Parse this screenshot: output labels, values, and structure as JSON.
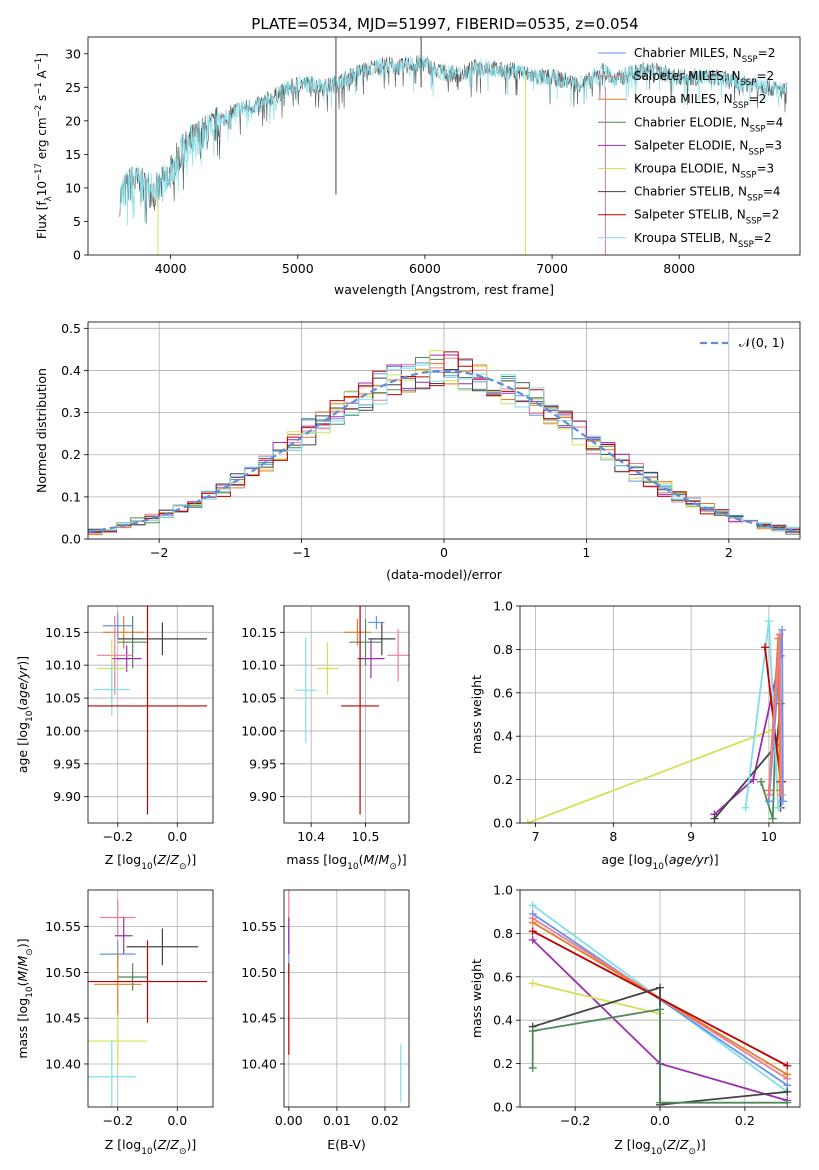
{
  "figure_title": "PLATE=0534, MJD=51997, FIBERID=0535, z=0.054",
  "colors": {
    "chabrier_miles": "#6495ed",
    "salpeter_miles": "#ef7c94",
    "kroupa_miles": "#e87b2a",
    "chabrier_elodie": "#4f8a58",
    "salpeter_elodie": "#9b2fae",
    "kroupa_elodie": "#d4e157",
    "chabrier_stelib": "#444444",
    "salpeter_stelib": "#c00000",
    "kroupa_stelib": "#80deea",
    "normal_curve": "#5b8fd8"
  },
  "chart_data": [
    {
      "id": "spectrum",
      "type": "line",
      "xlabel": "wavelength [Angstrom, rest frame]",
      "ylabel_main": "Flux [f",
      "ylabel_sub_lambda": "λ",
      "ylabel_rest": "10",
      "ylabel_exp1": "−17",
      "ylabel_mid": " erg cm",
      "ylabel_exp2": "−2",
      "ylabel_s": " s",
      "ylabel_exp3": "−1",
      "ylabel_end": " A",
      "ylabel_exp4": "−1",
      "ylabel_close": "]",
      "xlim": [
        3350,
        8950
      ],
      "ylim": [
        0,
        32.5
      ],
      "xticks": [
        4000,
        5000,
        6000,
        7000,
        8000
      ],
      "yticks": [
        0,
        5,
        10,
        15,
        20,
        25,
        30
      ],
      "legend": [
        {
          "name": "Chabrier MILES, N",
          "sub": "SSP",
          "rest": "=2",
          "color_key": "chabrier_miles"
        },
        {
          "name": "Salpeter MILES, N",
          "sub": "SSP",
          "rest": "=2",
          "color_key": "salpeter_miles"
        },
        {
          "name": "Kroupa MILES, N",
          "sub": "SSP",
          "rest": "=2",
          "color_key": "kroupa_miles"
        },
        {
          "name": "Chabrier ELODIE, N",
          "sub": "SSP",
          "rest": "=4",
          "color_key": "chabrier_elodie"
        },
        {
          "name": "Salpeter ELODIE, N",
          "sub": "SSP",
          "rest": "=3",
          "color_key": "salpeter_elodie"
        },
        {
          "name": "Kroupa ELODIE, N",
          "sub": "SSP",
          "rest": "=3",
          "color_key": "kroupa_elodie"
        },
        {
          "name": "Chabrier STELIB, N",
          "sub": "SSP",
          "rest": "=4",
          "color_key": "chabrier_stelib"
        },
        {
          "name": "Salpeter STELIB, N",
          "sub": "SSP",
          "rest": "=2",
          "color_key": "salpeter_stelib"
        },
        {
          "name": "Kroupa STELIB, N",
          "sub": "SSP",
          "rest": "=2",
          "color_key": "kroupa_stelib"
        }
      ],
      "spectrum_anchor_x": [
        3600,
        3700,
        3800,
        3900,
        4000,
        4100,
        4200,
        4300,
        4400,
        4500,
        4600,
        4700,
        4800,
        4900,
        5000,
        5100,
        5200,
        5300,
        5400,
        5500,
        5600,
        5700,
        5800,
        5900,
        6000,
        6100,
        6200,
        6300,
        6400,
        6500,
        6600,
        6700,
        6800,
        6900,
        7000,
        7100,
        7200,
        7300,
        7400,
        7500,
        7600,
        7700,
        7800,
        7900,
        8000,
        8100,
        8200,
        8300,
        8400,
        8500,
        8600,
        8700,
        8800
      ],
      "spectrum_anchor_y": [
        8.5,
        11.0,
        10.0,
        9.5,
        12.5,
        15.5,
        17.5,
        18.5,
        20.0,
        21.5,
        22.0,
        22.5,
        23.5,
        24.5,
        25.5,
        25.5,
        25.0,
        25.5,
        26.5,
        27.5,
        28.0,
        28.5,
        28.0,
        28.5,
        28.5,
        27.5,
        27.0,
        27.0,
        28.0,
        28.0,
        27.5,
        27.5,
        27.0,
        26.5,
        26.5,
        26.0,
        25.5,
        26.0,
        27.5,
        26.0,
        27.0,
        27.5,
        27.5,
        27.0,
        26.5,
        26.5,
        26.5,
        26.5,
        26.0,
        25.5,
        25.5,
        25.0,
        24.5
      ],
      "spectrum_x_start": 3600,
      "spectrum_x_end": 8850,
      "artifact_lines": [
        {
          "x": 3900,
          "y1": 0,
          "y2": 9,
          "color_key": "kroupa_elodie"
        },
        {
          "x": 5300,
          "y1": 9,
          "y2": 32.5,
          "color_key": "chabrier_stelib"
        },
        {
          "x": 5970,
          "y1": 25,
          "y2": 32.5,
          "color_key": "chabrier_stelib"
        },
        {
          "x": 6790,
          "y1": 0,
          "y2": 27,
          "color_key": "kroupa_elodie"
        },
        {
          "x": 7420,
          "y1": 0,
          "y2": 25,
          "color_key": "salpeter_miles"
        }
      ]
    },
    {
      "id": "residual_hist",
      "type": "line",
      "xlabel": "(data-model)/error",
      "ylabel": "Normed distribution",
      "xlim": [
        -2.5,
        2.5
      ],
      "ylim": [
        0,
        0.515
      ],
      "xticks": [
        -2,
        -1,
        0,
        1,
        2
      ],
      "xticklabels": [
        "−2",
        "−1",
        "0",
        "1",
        "2"
      ],
      "yticks": [
        0,
        0.1,
        0.2,
        0.3,
        0.4,
        0.5
      ],
      "yticklabels": [
        "0.0",
        "0.1",
        "0.2",
        "0.3",
        "0.4",
        "0.5"
      ],
      "legend_label": "𝒩(0, 1)",
      "bin_width": 0.1
    },
    {
      "id": "z_age",
      "type": "scatter",
      "xlabel": "Z [log10(Z/Z⊙)]",
      "ylabel": "age  [log10(age/yr)]",
      "xlim": [
        -0.3,
        0.12
      ],
      "ylim": [
        9.86,
        10.19
      ],
      "xticks": [
        -0.2,
        0.0
      ],
      "xticklabels": [
        "−0.2",
        "0.0"
      ],
      "yticks": [
        9.9,
        9.95,
        10.0,
        10.05,
        10.1,
        10.15
      ],
      "yticklabels": [
        "9.90",
        "9.95",
        "10.00",
        "10.05",
        "10.10",
        "10.15"
      ],
      "points": [
        {
          "color_key": "chabrier_miles",
          "x": -0.2,
          "xerr": 0.05,
          "y": 10.16,
          "yerr": 0.02
        },
        {
          "color_key": "kroupa_miles",
          "x": -0.18,
          "xerr": 0.07,
          "y": 10.15,
          "yerr": 0.025
        },
        {
          "color_key": "chabrier_elodie",
          "x": -0.15,
          "xerr": 0.05,
          "y": 10.135,
          "yerr": 0.04
        },
        {
          "color_key": "chabrier_stelib",
          "x": -0.05,
          "xerr": 0.15,
          "y": 10.14,
          "yerr": 0.025
        },
        {
          "color_key": "salpeter_elodie",
          "x": -0.17,
          "xerr": 0.05,
          "y": 10.11,
          "yerr": 0.02
        },
        {
          "color_key": "salpeter_miles",
          "x": -0.21,
          "xerr": 0.06,
          "y": 10.115,
          "yerr": 0.06
        },
        {
          "color_key": "kroupa_elodie",
          "x": -0.22,
          "xerr": 0.05,
          "y": 10.095,
          "yerr": 0.045
        },
        {
          "color_key": "kroupa_stelib",
          "x": -0.22,
          "xerr": 0.06,
          "y": 10.063,
          "yerr": 0.04
        },
        {
          "color_key": "salpeter_stelib",
          "x": -0.1,
          "xerr": 0.2,
          "y": 10.038,
          "yerr": 0.165
        }
      ]
    },
    {
      "id": "mass_age",
      "type": "scatter",
      "xlabel": "mass [log10(M/M⊙)]",
      "ylabel": "",
      "xlim": [
        10.35,
        10.58
      ],
      "ylim": [
        9.86,
        10.19
      ],
      "xticks": [
        10.4,
        10.5
      ],
      "xticklabels": [
        "10.4",
        "10.5"
      ],
      "yticks": [
        9.9,
        9.95,
        10.0,
        10.05,
        10.1,
        10.15
      ],
      "yticklabels": [
        "9.90",
        "9.95",
        "10.00",
        "10.05",
        "10.10",
        "10.15"
      ],
      "points": [
        {
          "color_key": "chabrier_miles",
          "x": 10.52,
          "xerr": 0.015,
          "y": 10.165,
          "yerr": 0.01
        },
        {
          "color_key": "kroupa_miles",
          "x": 10.485,
          "xerr": 0.025,
          "y": 10.15,
          "yerr": 0.02
        },
        {
          "color_key": "chabrier_stelib",
          "x": 10.53,
          "xerr": 0.025,
          "y": 10.14,
          "yerr": 0.025
        },
        {
          "color_key": "chabrier_elodie",
          "x": 10.5,
          "xerr": 0.03,
          "y": 10.135,
          "yerr": 0.035
        },
        {
          "color_key": "salpeter_miles",
          "x": 10.56,
          "xerr": 0.02,
          "y": 10.115,
          "yerr": 0.04
        },
        {
          "color_key": "salpeter_elodie",
          "x": 10.51,
          "xerr": 0.025,
          "y": 10.11,
          "yerr": 0.03
        },
        {
          "color_key": "kroupa_elodie",
          "x": 10.43,
          "xerr": 0.02,
          "y": 10.095,
          "yerr": 0.04
        },
        {
          "color_key": "kroupa_stelib",
          "x": 10.39,
          "xerr": 0.02,
          "y": 10.062,
          "yerr": 0.08
        },
        {
          "color_key": "salpeter_stelib",
          "x": 10.49,
          "xerr": 0.035,
          "y": 10.038,
          "yerr": 0.165
        }
      ]
    },
    {
      "id": "age_weight",
      "type": "line",
      "xlabel": "age  [log10(age/yr)]",
      "ylabel": "mass weight",
      "xlim": [
        6.8,
        10.4
      ],
      "ylim": [
        0,
        1.0
      ],
      "xticks": [
        7,
        8,
        9,
        10
      ],
      "yticks": [
        0,
        0.2,
        0.4,
        0.6,
        0.8,
        1.0
      ],
      "yticklabels": [
        "0.0",
        "0.2",
        "0.4",
        "0.6",
        "0.8",
        "1.0"
      ],
      "series": [
        {
          "color_key": "kroupa_elodie",
          "x": [
            6.9,
            10.05,
            10.1
          ],
          "y": [
            0.0,
            0.43,
            0.57
          ]
        },
        {
          "color_key": "salpeter_elodie",
          "x": [
            9.3,
            9.8,
            10.15
          ],
          "y": [
            0.04,
            0.2,
            0.77
          ]
        },
        {
          "color_key": "chabrier_stelib",
          "x": [
            9.3,
            10.1,
            10.15,
            10.15
          ],
          "y": [
            0.02,
            0.36,
            0.55,
            0.07
          ]
        },
        {
          "color_key": "chabrier_elodie",
          "x": [
            9.9,
            10.05,
            10.08
          ],
          "y": [
            0.19,
            0.02,
            0.35
          ]
        },
        {
          "color_key": "kroupa_stelib",
          "x": [
            9.7,
            10.0,
            10.12
          ],
          "y": [
            0.07,
            0.93,
            0.07
          ]
        },
        {
          "color_key": "salpeter_stelib",
          "x": [
            9.95,
            10.15,
            10.17
          ],
          "y": [
            0.81,
            0.19,
            0.19
          ]
        },
        {
          "color_key": "chabrier_miles",
          "x": [
            10.0,
            10.17,
            10.18
          ],
          "y": [
            0.1,
            0.89,
            0.1
          ]
        },
        {
          "color_key": "kroupa_miles",
          "x": [
            10.0,
            10.12,
            10.14
          ],
          "y": [
            0.15,
            0.85,
            0.15
          ]
        },
        {
          "color_key": "salpeter_miles",
          "x": [
            10.0,
            10.14,
            10.16
          ],
          "y": [
            0.13,
            0.87,
            0.13
          ]
        }
      ]
    },
    {
      "id": "z_mass",
      "type": "scatter",
      "xlabel": "Z [log10(Z/Z⊙)]",
      "ylabel": "mass [log10(M/M⊙)]",
      "xlim": [
        -0.3,
        0.12
      ],
      "ylim": [
        10.353,
        10.59
      ],
      "xticks": [
        -0.2,
        0.0
      ],
      "xticklabels": [
        "−0.2",
        "0.0"
      ],
      "yticks": [
        10.4,
        10.45,
        10.5,
        10.55
      ],
      "yticklabels": [
        "10.40",
        "10.45",
        "10.50",
        "10.55"
      ],
      "points": [
        {
          "color_key": "salpeter_miles",
          "x": -0.2,
          "xerr": 0.06,
          "y": 10.56,
          "yerr": 0.02
        },
        {
          "color_key": "salpeter_elodie",
          "x": -0.18,
          "xerr": 0.03,
          "y": 10.54,
          "yerr": 0.02
        },
        {
          "color_key": "chabrier_stelib",
          "x": -0.05,
          "xerr": 0.12,
          "y": 10.528,
          "yerr": 0.02
        },
        {
          "color_key": "chabrier_miles",
          "x": -0.2,
          "xerr": 0.06,
          "y": 10.52,
          "yerr": 0.015
        },
        {
          "color_key": "chabrier_elodie",
          "x": -0.15,
          "xerr": 0.05,
          "y": 10.495,
          "yerr": 0.015
        },
        {
          "color_key": "kroupa_miles",
          "x": -0.2,
          "xerr": 0.08,
          "y": 10.487,
          "yerr": 0.035
        },
        {
          "color_key": "salpeter_stelib",
          "x": -0.1,
          "xerr": 0.2,
          "y": 10.49,
          "yerr": 0.045
        },
        {
          "color_key": "kroupa_elodie",
          "x": -0.2,
          "xerr": 0.1,
          "y": 10.425,
          "yerr": 0.03
        },
        {
          "color_key": "kroupa_stelib",
          "x": -0.22,
          "xerr": 0.08,
          "y": 10.386,
          "yerr": 0.04
        }
      ]
    },
    {
      "id": "ebv_mass",
      "type": "scatter",
      "xlabel": "E(B-V)",
      "ylabel": "",
      "xlim": [
        -0.001,
        0.025
      ],
      "ylim": [
        10.353,
        10.59
      ],
      "xticks": [
        0.0,
        0.01,
        0.02
      ],
      "xticklabels": [
        "0.00",
        "0.01",
        "0.02"
      ],
      "yticks": [
        10.4,
        10.45,
        10.5,
        10.55
      ],
      "yticklabels": [
        "10.40",
        "10.45",
        "10.50",
        "10.55"
      ],
      "points": [
        {
          "color_key": "salpeter_miles",
          "x": 0.0,
          "xerr": 0.0,
          "y": 10.56,
          "yerr": 0.03
        },
        {
          "color_key": "chabrier_miles",
          "x": 0.0,
          "xerr": 0.0,
          "y": 10.52,
          "yerr": 0.03
        },
        {
          "color_key": "salpeter_elodie",
          "x": 0.0,
          "xerr": 0.0,
          "y": 10.54,
          "yerr": 0.02
        },
        {
          "color_key": "salpeter_stelib",
          "x": 0.0,
          "xerr": 0.0,
          "y": 10.46,
          "yerr": 0.05
        },
        {
          "color_key": "kroupa_stelib",
          "x": 0.0233,
          "xerr": 0.0,
          "y": 10.39,
          "yerr": 0.032
        }
      ]
    },
    {
      "id": "z_weight",
      "type": "line",
      "xlabel": "Z [log10(Z/Z⊙)]",
      "ylabel": "mass weight",
      "xlim": [
        -0.33,
        0.33
      ],
      "ylim": [
        0,
        1.0
      ],
      "xticks": [
        -0.2,
        0.0,
        0.2
      ],
      "xticklabels": [
        "−0.2",
        "0.0",
        "0.2"
      ],
      "yticks": [
        0,
        0.2,
        0.4,
        0.6,
        0.8,
        1.0
      ],
      "yticklabels": [
        "0.0",
        "0.2",
        "0.4",
        "0.6",
        "0.8",
        "1.0"
      ],
      "series": [
        {
          "color_key": "kroupa_stelib",
          "x": [
            -0.3,
            0.3
          ],
          "y": [
            0.93,
            0.07
          ]
        },
        {
          "color_key": "chabrier_miles",
          "x": [
            -0.3,
            0.3
          ],
          "y": [
            0.89,
            0.1
          ]
        },
        {
          "color_key": "salpeter_miles",
          "x": [
            -0.3,
            0.3
          ],
          "y": [
            0.87,
            0.13
          ]
        },
        {
          "color_key": "kroupa_miles",
          "x": [
            -0.3,
            0.3
          ],
          "y": [
            0.85,
            0.15
          ]
        },
        {
          "color_key": "salpeter_stelib",
          "x": [
            -0.3,
            0.3
          ],
          "y": [
            0.81,
            0.19
          ]
        },
        {
          "color_key": "salpeter_elodie",
          "x": [
            -0.3,
            0.0,
            0.3
          ],
          "y": [
            0.77,
            0.2,
            0.03
          ]
        },
        {
          "color_key": "kroupa_elodie",
          "x": [
            -0.3,
            0.0
          ],
          "y": [
            0.57,
            0.43
          ]
        },
        {
          "color_key": "chabrier_stelib",
          "x": [
            -0.3,
            0.0,
            0.0,
            0.3
          ],
          "y": [
            0.37,
            0.55,
            0.01,
            0.07
          ]
        },
        {
          "color_key": "chabrier_elodie",
          "x": [
            -0.3,
            -0.3,
            0.0,
            0.0,
            0.3
          ],
          "y": [
            0.18,
            0.35,
            0.45,
            0.02,
            0.02
          ]
        }
      ]
    }
  ]
}
